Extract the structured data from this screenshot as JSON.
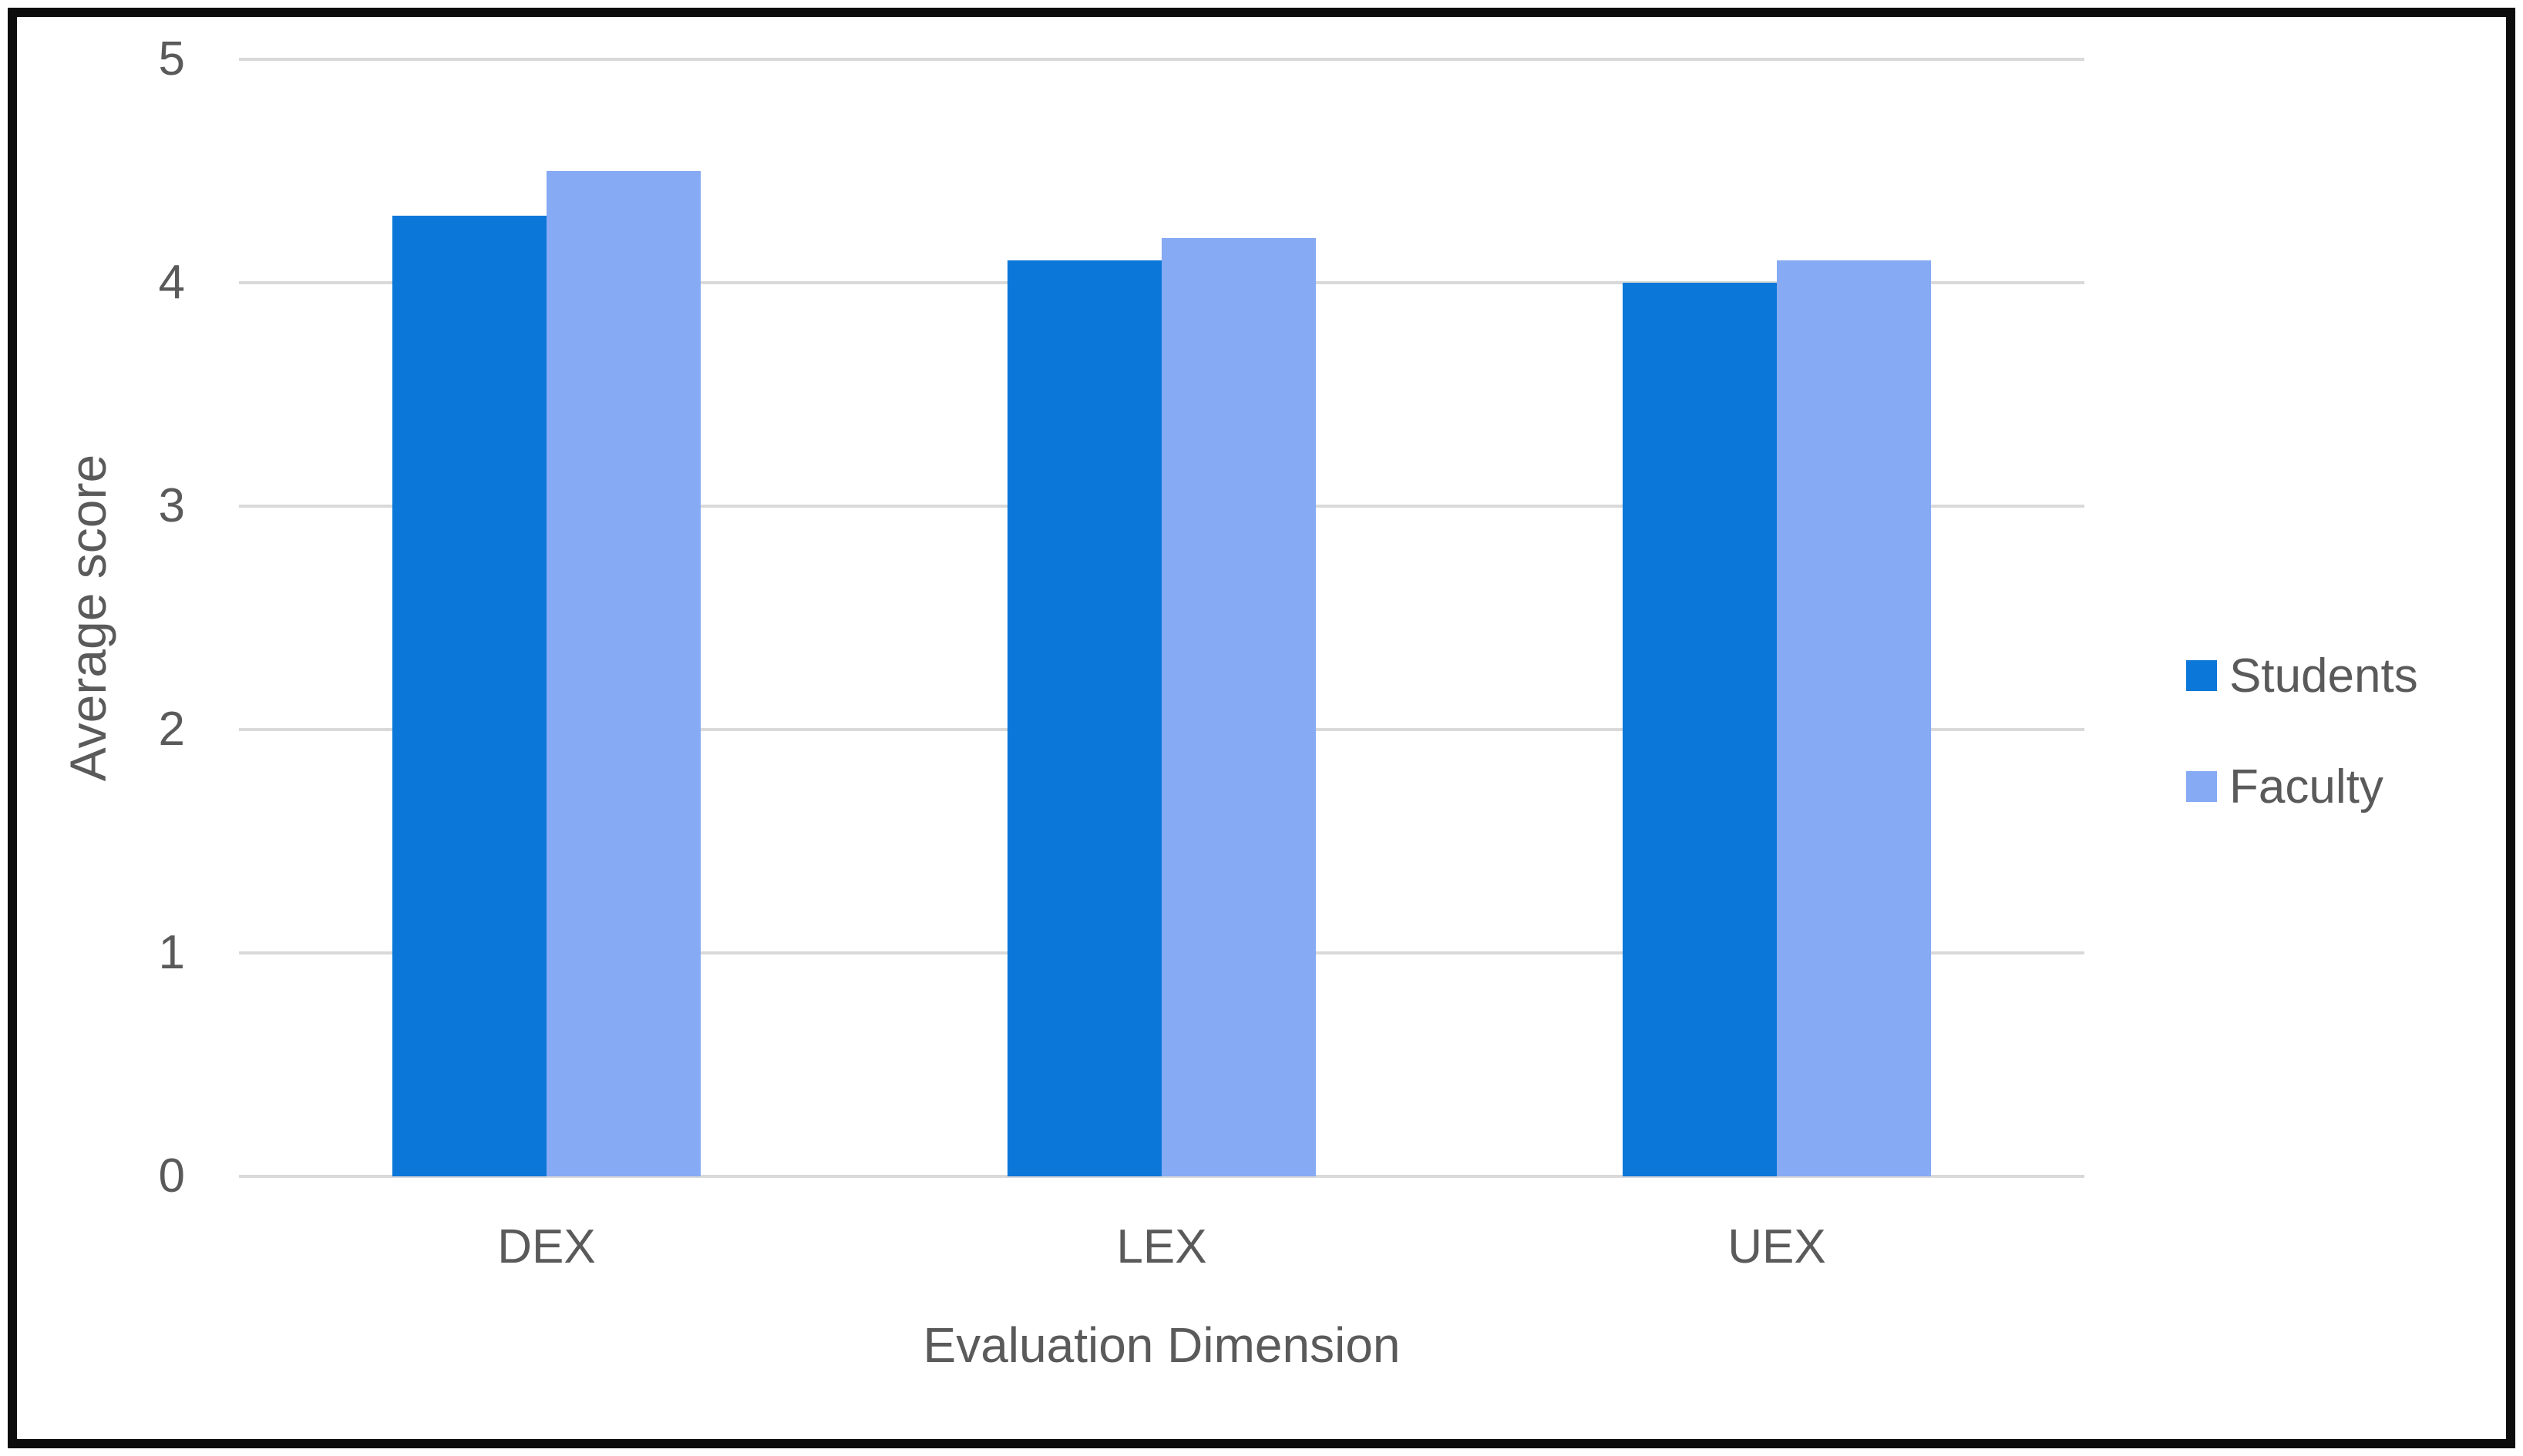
{
  "chart_data": {
    "type": "bar",
    "title": "",
    "categories": [
      "DEX",
      "LEX",
      "UEX"
    ],
    "series": [
      {
        "name": "Students",
        "color": "#0b77d8",
        "values": [
          4.3,
          4.1,
          4.0
        ]
      },
      {
        "name": "Faculty",
        "color": "#86aaf4",
        "values": [
          4.5,
          4.2,
          4.1
        ]
      }
    ],
    "xlabel": "Evaluation Dimension",
    "ylabel": "Average score",
    "ylim": [
      0,
      5
    ],
    "yticks": [
      0,
      1,
      2,
      3,
      4,
      5
    ],
    "grid": true,
    "legend_position": "right",
    "colors": {
      "gridline": "#d9d9d9",
      "axis_text": "#5a5a5a",
      "frame_border": "#0d0d0d",
      "background": "#ffffff"
    }
  }
}
